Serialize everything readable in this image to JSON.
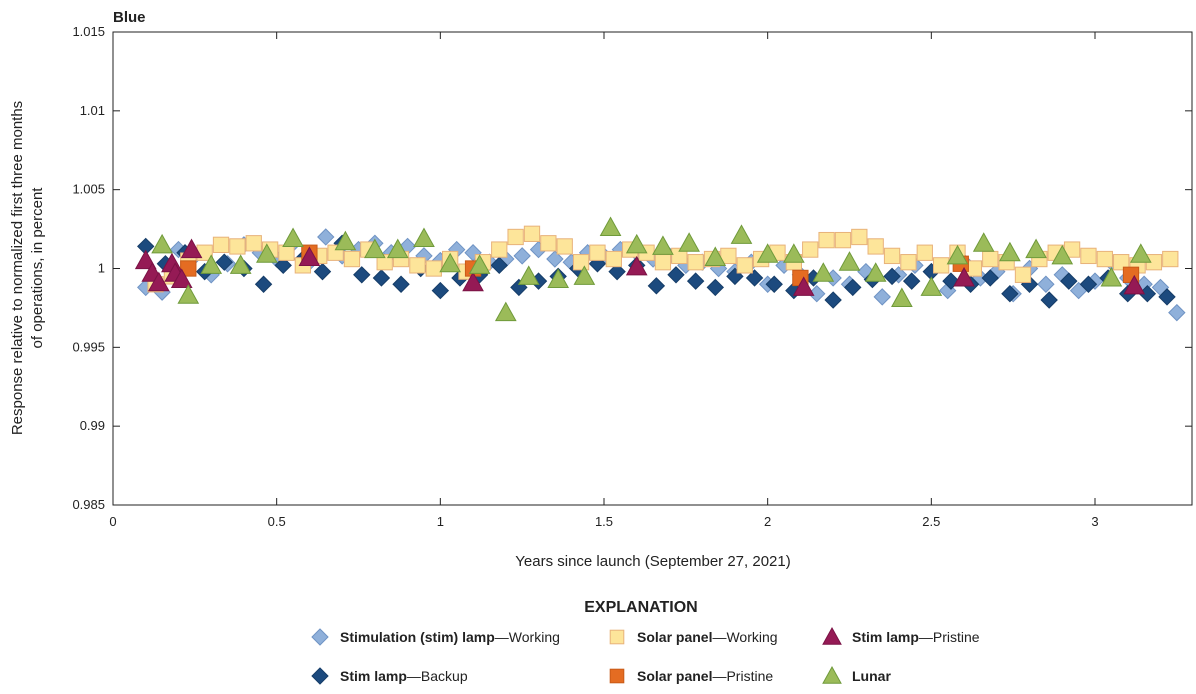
{
  "chart_data": {
    "type": "scatter",
    "title": "Blue",
    "xlabel": "Years since launch (September 27, 2021)",
    "ylabel": [
      "Response relative to normalized first three months",
      "of operations, in percent"
    ],
    "xlim": [
      0,
      3.3
    ],
    "ylim": [
      0.985,
      1.015
    ],
    "xticks": [
      0,
      0.5,
      1,
      1.5,
      2,
      2.5,
      3
    ],
    "xtick_labels": [
      "0",
      "0.5",
      "1",
      "1.5",
      "2",
      "2.5",
      "3"
    ],
    "yticks": [
      0.985,
      0.99,
      0.995,
      1,
      1.005,
      1.01,
      1.015
    ],
    "ytick_labels": [
      "0.985",
      "0.99",
      "0.995",
      "1",
      "1.005",
      "1.01",
      "1.015"
    ],
    "grid": false,
    "legend_title": "EXPLANATION",
    "legend_placement": "bottom",
    "series": [
      {
        "name_bold": "Stimulation (stim) lamp",
        "name_rest": "—Working",
        "marker": "diamond",
        "color": "#8fb0da",
        "edge": "#6f93c4",
        "x_start": 0.1,
        "x_step": 0.05,
        "y": [
          0.9988,
          0.9985,
          1.0012,
          1.0008,
          0.9996,
          1.0003,
          1.0015,
          1.001,
          1.0006,
          1.0016,
          1.0004,
          1.002,
          1.0008,
          1.0012,
          1.0016,
          1.001,
          1.0014,
          1.0008,
          1.0005,
          1.0012,
          1.001,
          1.0004,
          1.0006,
          1.0008,
          1.0012,
          1.0006,
          1.0004,
          1.001,
          1.0008,
          1.0012,
          1.001,
          1.0006,
          1.0008,
          1.0002,
          1.0004,
          1.0,
          0.9998,
          1.0004,
          0.999,
          1.0002,
          0.9996,
          0.9984,
          0.9994,
          0.999,
          0.9998,
          0.9982,
          0.9996,
          1.0002,
          0.9998,
          0.9986,
          1.0004,
          0.9994,
          0.9998,
          0.9984,
          1.0,
          0.999,
          0.9996,
          0.9986,
          0.9992,
          1.0004,
          0.9994,
          0.999,
          0.9988,
          0.9972
        ]
      },
      {
        "name_bold": "Stim lamp",
        "name_rest": "—Backup",
        "marker": "diamond",
        "color": "#1c4a7e",
        "edge": "#163d68",
        "x_start": 0.1,
        "x_step": 0.06,
        "y": [
          1.0014,
          1.0003,
          1.001,
          0.9998,
          1.0004,
          1.0,
          0.999,
          1.0002,
          1.0006,
          0.9998,
          1.0016,
          0.9996,
          0.9994,
          0.999,
          1.0,
          0.9986,
          0.9994,
          0.9996,
          1.0002,
          0.9988,
          0.9992,
          0.9995,
          1.0,
          1.0003,
          0.9998,
          1.0002,
          0.9989,
          0.9996,
          0.9992,
          0.9988,
          0.9995,
          0.9994,
          0.999,
          0.9986,
          0.9994,
          0.998,
          0.9988,
          0.9993,
          0.9995,
          0.9992,
          0.9998,
          0.9992,
          0.999,
          0.9994,
          0.9984,
          0.999,
          0.998,
          0.9992,
          0.999,
          0.9994,
          0.9984,
          0.9984,
          0.9982
        ]
      },
      {
        "name_bold": "Solar panel",
        "name_rest": "—Working",
        "marker": "square",
        "color": "#fde59a",
        "edge": "#e8b27a",
        "x_start": 0.13,
        "x_step": 0.05,
        "y": [
          0.999,
          0.9995,
          1.0005,
          1.001,
          1.0015,
          1.0014,
          1.0016,
          1.0012,
          1.001,
          1.0002,
          1.0008,
          1.001,
          1.0006,
          1.0012,
          1.0004,
          1.0006,
          1.0002,
          1.0,
          1.0006,
          0.9998,
          1.0004,
          1.0012,
          1.002,
          1.0022,
          1.0016,
          1.0014,
          1.0004,
          1.001,
          1.0006,
          1.0012,
          1.001,
          1.0004,
          1.0008,
          1.0004,
          1.0006,
          1.0008,
          1.0002,
          1.0006,
          1.001,
          1.0004,
          1.0012,
          1.0018,
          1.0018,
          1.002,
          1.0014,
          1.0008,
          1.0004,
          1.001,
          1.0002,
          1.001,
          1.0,
          1.0006,
          1.0004,
          0.9996,
          1.0006,
          1.001,
          1.0012,
          1.0008,
          1.0006,
          1.0004,
          1.0002,
          1.0004,
          1.0006
        ]
      },
      {
        "name_bold": "Solar panel",
        "name_rest": "—Pristine",
        "marker": "square",
        "color": "#e46c22",
        "edge": "#c95a18",
        "x": [
          0.23,
          0.6,
          1.1,
          2.1,
          2.59,
          3.11
        ],
        "y": [
          1.0,
          1.001,
          1.0,
          0.9994,
          1.0003,
          0.9996
        ]
      },
      {
        "name_bold": "Stim lamp",
        "name_rest": "—Pristine",
        "marker": "triangle",
        "color": "#951a55",
        "edge": "#7a1245",
        "x": [
          0.1,
          0.12,
          0.14,
          0.18,
          0.19,
          0.21,
          0.24,
          0.6,
          1.1,
          1.6,
          2.11,
          2.6,
          3.12
        ],
        "y": [
          1.0005,
          0.9997,
          0.9991,
          1.0003,
          0.9997,
          0.9993,
          1.0012,
          1.0007,
          0.9991,
          1.0001,
          0.9988,
          0.9994,
          0.9989
        ]
      },
      {
        "name_bold": "Lunar",
        "name_rest": "",
        "marker": "triangle",
        "color": "#9bbb59",
        "edge": "#6f9a3a",
        "x": [
          0.15,
          0.23,
          0.3,
          0.39,
          0.47,
          0.55,
          0.71,
          0.8,
          0.87,
          0.95,
          1.03,
          1.12,
          1.2,
          1.27,
          1.36,
          1.44,
          1.52,
          1.6,
          1.68,
          1.76,
          1.84,
          1.92,
          2.0,
          2.08,
          2.17,
          2.25,
          2.33,
          2.41,
          2.5,
          2.58,
          2.66,
          2.74,
          2.82,
          2.9,
          3.05,
          3.14
        ],
        "y": [
          1.0015,
          0.9983,
          1.0002,
          1.0002,
          1.0009,
          1.0019,
          1.0017,
          1.0012,
          1.0012,
          1.0019,
          1.0003,
          1.0002,
          0.9972,
          0.9995,
          0.9993,
          0.9995,
          1.0026,
          1.0015,
          1.0014,
          1.0016,
          1.0007,
          1.0021,
          1.0009,
          1.0009,
          0.9997,
          1.0004,
          0.9997,
          0.9981,
          0.9988,
          1.0008,
          1.0016,
          1.001,
          1.0012,
          1.0008,
          0.9994,
          1.0009
        ]
      }
    ]
  }
}
